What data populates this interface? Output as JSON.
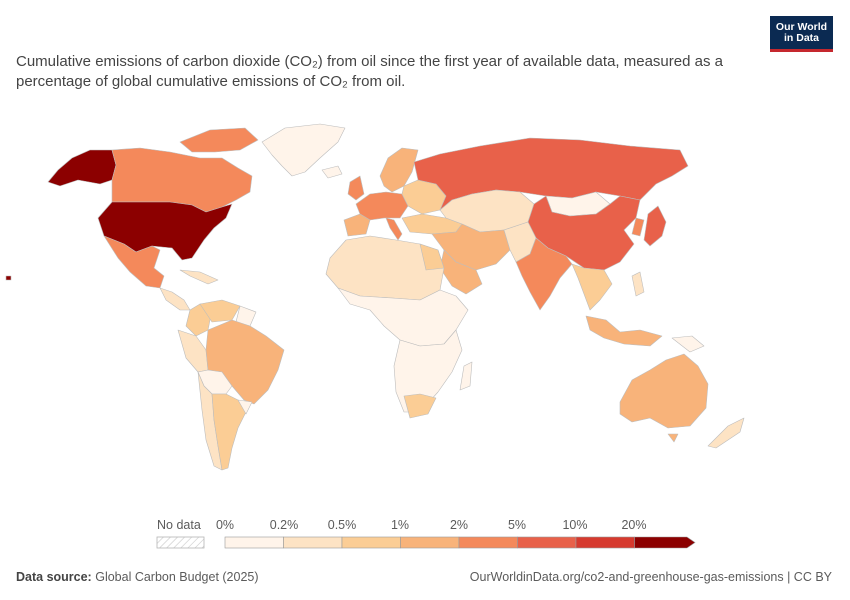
{
  "logo": {
    "line1": "Our World",
    "line2": "in Data"
  },
  "title": "Cumulative emissions of carbon dioxide (CO₂) from oil since the first year of available data, measured as a percentage of global cumulative emissions of CO₂ from oil.",
  "legend": {
    "no_data_label": "No data",
    "bins": [
      "0%",
      "0.2%",
      "0.5%",
      "1%",
      "2%",
      "5%",
      "10%",
      "20%"
    ],
    "colors": [
      "#fff4ea",
      "#fde3c4",
      "#fbcd95",
      "#f8b37a",
      "#f4895b",
      "#e8614a",
      "#d63a2f",
      "#8c0000"
    ]
  },
  "footer": {
    "source_label": "Data source:",
    "source_value": "Global Carbon Budget (2025)",
    "url": "OurWorldinData.org/co2-and-greenhouse-gas-emissions | CC BY"
  },
  "map_data": {
    "type": "choropleth",
    "unit": "% of global cumulative oil CO₂",
    "regions": [
      {
        "region": "United States",
        "bin": 7
      },
      {
        "region": "Alaska",
        "bin": 7
      },
      {
        "region": "Canada",
        "bin": 4
      },
      {
        "region": "Mexico",
        "bin": 4
      },
      {
        "region": "Russia",
        "bin": 5
      },
      {
        "region": "China",
        "bin": 5
      },
      {
        "region": "Japan",
        "bin": 5
      },
      {
        "region": "India",
        "bin": 4
      },
      {
        "region": "Western Europe",
        "bin": 4
      },
      {
        "region": "Brazil",
        "bin": 3
      },
      {
        "region": "Australia",
        "bin": 3
      },
      {
        "region": "Middle East",
        "bin": 3
      },
      {
        "region": "Argentina",
        "bin": 2
      },
      {
        "region": "South Africa",
        "bin": 2
      },
      {
        "region": "Central Asia",
        "bin": 1
      },
      {
        "region": "Africa",
        "bin": 0
      },
      {
        "region": "Greenland",
        "bin": 0
      }
    ]
  }
}
